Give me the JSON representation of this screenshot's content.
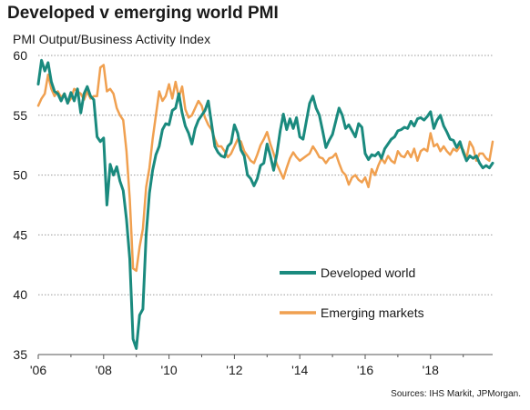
{
  "chart_data": {
    "type": "line",
    "title": "Developed v emerging world PMI",
    "ylabel": "PMI Output/Business  Activity Index",
    "xlabel": "",
    "source": "Sources: IHS Markit, JPMorgan.",
    "ylim": [
      35,
      60
    ],
    "xlim": [
      2006.0,
      2019.9
    ],
    "y_ticks": [
      35,
      40,
      45,
      50,
      55,
      60
    ],
    "x_ticks": [
      {
        "value": 2006,
        "label": "'06"
      },
      {
        "value": 2008,
        "label": "'08"
      },
      {
        "value": 2010,
        "label": "'10"
      },
      {
        "value": 2012,
        "label": "'12"
      },
      {
        "value": 2014,
        "label": "'14"
      },
      {
        "value": 2016,
        "label": "'16"
      },
      {
        "value": 2018,
        "label": "'18"
      }
    ],
    "grid": "horizontal dotted",
    "legend_position": "center-right",
    "series": [
      {
        "name": "Developed world",
        "color": "#1a8a7e",
        "points": [
          [
            2006.0,
            57.6
          ],
          [
            2006.1,
            59.6
          ],
          [
            2006.2,
            58.7
          ],
          [
            2006.3,
            59.4
          ],
          [
            2006.4,
            57.8
          ],
          [
            2006.5,
            57.0
          ],
          [
            2006.6,
            56.8
          ],
          [
            2006.7,
            56.2
          ],
          [
            2006.8,
            56.8
          ],
          [
            2006.9,
            56.0
          ],
          [
            2007.0,
            56.9
          ],
          [
            2007.1,
            56.2
          ],
          [
            2007.2,
            57.2
          ],
          [
            2007.3,
            55.2
          ],
          [
            2007.4,
            56.8
          ],
          [
            2007.5,
            57.4
          ],
          [
            2007.6,
            56.6
          ],
          [
            2007.7,
            56.3
          ],
          [
            2007.8,
            53.2
          ],
          [
            2007.9,
            52.8
          ],
          [
            2008.0,
            53.1
          ],
          [
            2008.1,
            47.5
          ],
          [
            2008.2,
            50.9
          ],
          [
            2008.3,
            50.0
          ],
          [
            2008.4,
            50.7
          ],
          [
            2008.5,
            49.5
          ],
          [
            2008.6,
            48.7
          ],
          [
            2008.7,
            46.3
          ],
          [
            2008.8,
            43.0
          ],
          [
            2008.9,
            36.3
          ],
          [
            2009.0,
            35.5
          ],
          [
            2009.1,
            38.3
          ],
          [
            2009.2,
            38.8
          ],
          [
            2009.3,
            45.0
          ],
          [
            2009.4,
            48.5
          ],
          [
            2009.5,
            50.4
          ],
          [
            2009.6,
            51.7
          ],
          [
            2009.7,
            52.4
          ],
          [
            2009.8,
            53.8
          ],
          [
            2009.9,
            54.3
          ],
          [
            2010.0,
            54.2
          ],
          [
            2010.1,
            55.4
          ],
          [
            2010.2,
            55.6
          ],
          [
            2010.3,
            56.8
          ],
          [
            2010.4,
            55.2
          ],
          [
            2010.5,
            54.1
          ],
          [
            2010.6,
            53.5
          ],
          [
            2010.7,
            52.6
          ],
          [
            2010.8,
            53.9
          ],
          [
            2010.9,
            54.6
          ],
          [
            2011.0,
            55.0
          ],
          [
            2011.1,
            55.4
          ],
          [
            2011.2,
            56.2
          ],
          [
            2011.3,
            54.3
          ],
          [
            2011.4,
            52.4
          ],
          [
            2011.5,
            51.9
          ],
          [
            2011.6,
            51.6
          ],
          [
            2011.7,
            51.5
          ],
          [
            2011.8,
            52.4
          ],
          [
            2011.9,
            52.7
          ],
          [
            2012.0,
            54.2
          ],
          [
            2012.1,
            53.5
          ],
          [
            2012.2,
            52.1
          ],
          [
            2012.3,
            51.6
          ],
          [
            2012.4,
            50.0
          ],
          [
            2012.5,
            49.7
          ],
          [
            2012.6,
            49.1
          ],
          [
            2012.7,
            49.7
          ],
          [
            2012.8,
            50.8
          ],
          [
            2012.9,
            51.0
          ],
          [
            2013.0,
            52.6
          ],
          [
            2013.1,
            51.6
          ],
          [
            2013.2,
            50.4
          ],
          [
            2013.3,
            51.8
          ],
          [
            2013.4,
            53.7
          ],
          [
            2013.5,
            55.1
          ],
          [
            2013.6,
            53.8
          ],
          [
            2013.7,
            54.7
          ],
          [
            2013.8,
            53.9
          ],
          [
            2013.9,
            54.8
          ],
          [
            2014.0,
            53.2
          ],
          [
            2014.1,
            53.0
          ],
          [
            2014.2,
            54.5
          ],
          [
            2014.3,
            56.0
          ],
          [
            2014.4,
            56.6
          ],
          [
            2014.5,
            55.6
          ],
          [
            2014.6,
            55.0
          ],
          [
            2014.7,
            53.7
          ],
          [
            2014.8,
            52.3
          ],
          [
            2014.9,
            52.9
          ],
          [
            2015.0,
            53.4
          ],
          [
            2015.1,
            54.5
          ],
          [
            2015.2,
            55.6
          ],
          [
            2015.3,
            55.0
          ],
          [
            2015.4,
            53.9
          ],
          [
            2015.5,
            54.2
          ],
          [
            2015.6,
            53.7
          ],
          [
            2015.7,
            53.2
          ],
          [
            2015.8,
            54.3
          ],
          [
            2015.9,
            54.0
          ],
          [
            2016.0,
            51.8
          ],
          [
            2016.1,
            51.3
          ],
          [
            2016.2,
            51.7
          ],
          [
            2016.3,
            51.6
          ],
          [
            2016.4,
            51.9
          ],
          [
            2016.5,
            51.4
          ],
          [
            2016.6,
            52.2
          ],
          [
            2016.7,
            52.6
          ],
          [
            2016.8,
            53.0
          ],
          [
            2016.9,
            53.2
          ],
          [
            2017.0,
            53.7
          ],
          [
            2017.1,
            53.8
          ],
          [
            2017.2,
            54.0
          ],
          [
            2017.3,
            53.9
          ],
          [
            2017.4,
            54.5
          ],
          [
            2017.5,
            54.1
          ],
          [
            2017.6,
            54.7
          ],
          [
            2017.7,
            54.8
          ],
          [
            2017.8,
            54.6
          ],
          [
            2017.9,
            54.9
          ],
          [
            2018.0,
            55.3
          ],
          [
            2018.1,
            53.9
          ],
          [
            2018.2,
            54.6
          ],
          [
            2018.3,
            55.0
          ],
          [
            2018.4,
            54.1
          ],
          [
            2018.5,
            53.6
          ],
          [
            2018.6,
            53.0
          ],
          [
            2018.7,
            52.9
          ],
          [
            2018.8,
            52.3
          ],
          [
            2018.9,
            52.8
          ],
          [
            2019.0,
            51.9
          ],
          [
            2019.1,
            51.2
          ],
          [
            2019.2,
            51.6
          ],
          [
            2019.3,
            51.4
          ],
          [
            2019.4,
            51.6
          ],
          [
            2019.5,
            51.0
          ],
          [
            2019.6,
            50.6
          ],
          [
            2019.7,
            50.8
          ],
          [
            2019.8,
            50.6
          ],
          [
            2019.9,
            51.0
          ]
        ]
      },
      {
        "name": "Emerging  markets",
        "color": "#f0a050",
        "points": [
          [
            2006.0,
            55.8
          ],
          [
            2006.1,
            56.4
          ],
          [
            2006.2,
            56.8
          ],
          [
            2006.3,
            58.4
          ],
          [
            2006.4,
            57.2
          ],
          [
            2006.5,
            56.6
          ],
          [
            2006.6,
            57.0
          ],
          [
            2006.7,
            56.5
          ],
          [
            2006.8,
            56.8
          ],
          [
            2006.9,
            56.0
          ],
          [
            2007.0,
            56.4
          ],
          [
            2007.1,
            57.2
          ],
          [
            2007.2,
            57.0
          ],
          [
            2007.3,
            56.8
          ],
          [
            2007.4,
            56.3
          ],
          [
            2007.5,
            57.0
          ],
          [
            2007.6,
            56.4
          ],
          [
            2007.7,
            56.6
          ],
          [
            2007.8,
            56.6
          ],
          [
            2007.9,
            59.0
          ],
          [
            2008.0,
            59.2
          ],
          [
            2008.1,
            57.0
          ],
          [
            2008.2,
            57.2
          ],
          [
            2008.3,
            56.8
          ],
          [
            2008.4,
            55.6
          ],
          [
            2008.5,
            55.0
          ],
          [
            2008.6,
            54.6
          ],
          [
            2008.7,
            52.0
          ],
          [
            2008.8,
            48.0
          ],
          [
            2008.9,
            42.2
          ],
          [
            2009.0,
            42.0
          ],
          [
            2009.1,
            44.0
          ],
          [
            2009.2,
            45.5
          ],
          [
            2009.3,
            49.0
          ],
          [
            2009.4,
            50.6
          ],
          [
            2009.5,
            53.0
          ],
          [
            2009.6,
            55.0
          ],
          [
            2009.7,
            57.0
          ],
          [
            2009.8,
            56.2
          ],
          [
            2009.9,
            56.6
          ],
          [
            2010.0,
            57.6
          ],
          [
            2010.1,
            56.4
          ],
          [
            2010.2,
            57.8
          ],
          [
            2010.3,
            56.5
          ],
          [
            2010.4,
            57.4
          ],
          [
            2010.5,
            55.5
          ],
          [
            2010.6,
            54.8
          ],
          [
            2010.7,
            55.0
          ],
          [
            2010.8,
            55.6
          ],
          [
            2010.9,
            56.2
          ],
          [
            2011.0,
            55.8
          ],
          [
            2011.1,
            54.8
          ],
          [
            2011.2,
            54.2
          ],
          [
            2011.3,
            53.8
          ],
          [
            2011.4,
            53.0
          ],
          [
            2011.5,
            52.4
          ],
          [
            2011.6,
            52.4
          ],
          [
            2011.7,
            52.0
          ],
          [
            2011.8,
            51.5
          ],
          [
            2011.9,
            51.8
          ],
          [
            2012.0,
            52.4
          ],
          [
            2012.1,
            53.0
          ],
          [
            2012.2,
            52.8
          ],
          [
            2012.3,
            52.0
          ],
          [
            2012.4,
            51.6
          ],
          [
            2012.5,
            51.2
          ],
          [
            2012.6,
            51.0
          ],
          [
            2012.7,
            51.7
          ],
          [
            2012.8,
            52.5
          ],
          [
            2012.9,
            53.0
          ],
          [
            2013.0,
            53.6
          ],
          [
            2013.1,
            52.6
          ],
          [
            2013.2,
            51.8
          ],
          [
            2013.3,
            50.9
          ],
          [
            2013.4,
            50.3
          ],
          [
            2013.5,
            49.7
          ],
          [
            2013.6,
            50.6
          ],
          [
            2013.7,
            51.4
          ],
          [
            2013.8,
            51.9
          ],
          [
            2013.9,
            51.5
          ],
          [
            2014.0,
            51.2
          ],
          [
            2014.1,
            51.4
          ],
          [
            2014.2,
            51.6
          ],
          [
            2014.3,
            51.8
          ],
          [
            2014.4,
            52.4
          ],
          [
            2014.5,
            52.0
          ],
          [
            2014.6,
            51.5
          ],
          [
            2014.7,
            51.4
          ],
          [
            2014.8,
            51.0
          ],
          [
            2014.9,
            51.4
          ],
          [
            2015.0,
            51.5
          ],
          [
            2015.1,
            51.8
          ],
          [
            2015.2,
            51.0
          ],
          [
            2015.3,
            50.3
          ],
          [
            2015.4,
            50.0
          ],
          [
            2015.5,
            49.2
          ],
          [
            2015.6,
            49.8
          ],
          [
            2015.7,
            50.0
          ],
          [
            2015.8,
            49.6
          ],
          [
            2015.9,
            49.4
          ],
          [
            2016.0,
            49.8
          ],
          [
            2016.1,
            49.0
          ],
          [
            2016.2,
            50.5
          ],
          [
            2016.3,
            50.0
          ],
          [
            2016.4,
            50.8
          ],
          [
            2016.5,
            51.4
          ],
          [
            2016.6,
            51.0
          ],
          [
            2016.7,
            51.6
          ],
          [
            2016.8,
            51.2
          ],
          [
            2016.9,
            51.0
          ],
          [
            2017.0,
            52.0
          ],
          [
            2017.1,
            51.6
          ],
          [
            2017.2,
            51.5
          ],
          [
            2017.3,
            52.0
          ],
          [
            2017.4,
            51.5
          ],
          [
            2017.5,
            52.2
          ],
          [
            2017.6,
            51.2
          ],
          [
            2017.7,
            52.0
          ],
          [
            2017.8,
            52.2
          ],
          [
            2017.9,
            52.0
          ],
          [
            2018.0,
            53.5
          ],
          [
            2018.1,
            52.4
          ],
          [
            2018.2,
            52.6
          ],
          [
            2018.3,
            52.0
          ],
          [
            2018.4,
            52.4
          ],
          [
            2018.5,
            52.0
          ],
          [
            2018.6,
            51.7
          ],
          [
            2018.7,
            52.2
          ],
          [
            2018.8,
            52.0
          ],
          [
            2018.9,
            52.4
          ],
          [
            2019.0,
            52.1
          ],
          [
            2019.1,
            51.4
          ],
          [
            2019.2,
            52.8
          ],
          [
            2019.3,
            52.3
          ],
          [
            2019.4,
            51.2
          ],
          [
            2019.5,
            51.8
          ],
          [
            2019.6,
            51.8
          ],
          [
            2019.7,
            51.4
          ],
          [
            2019.8,
            51.2
          ],
          [
            2019.9,
            52.8
          ]
        ]
      }
    ]
  }
}
